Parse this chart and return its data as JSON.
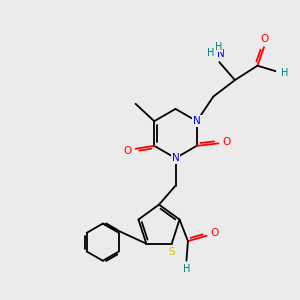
{
  "bg_color": "#ebebeb",
  "atom_colors": {
    "C": "#000000",
    "N": "#0000cc",
    "O": "#ff0000",
    "S": "#cccc00",
    "H": "#008080"
  },
  "figsize": [
    3.0,
    3.0
  ],
  "dpi": 100
}
